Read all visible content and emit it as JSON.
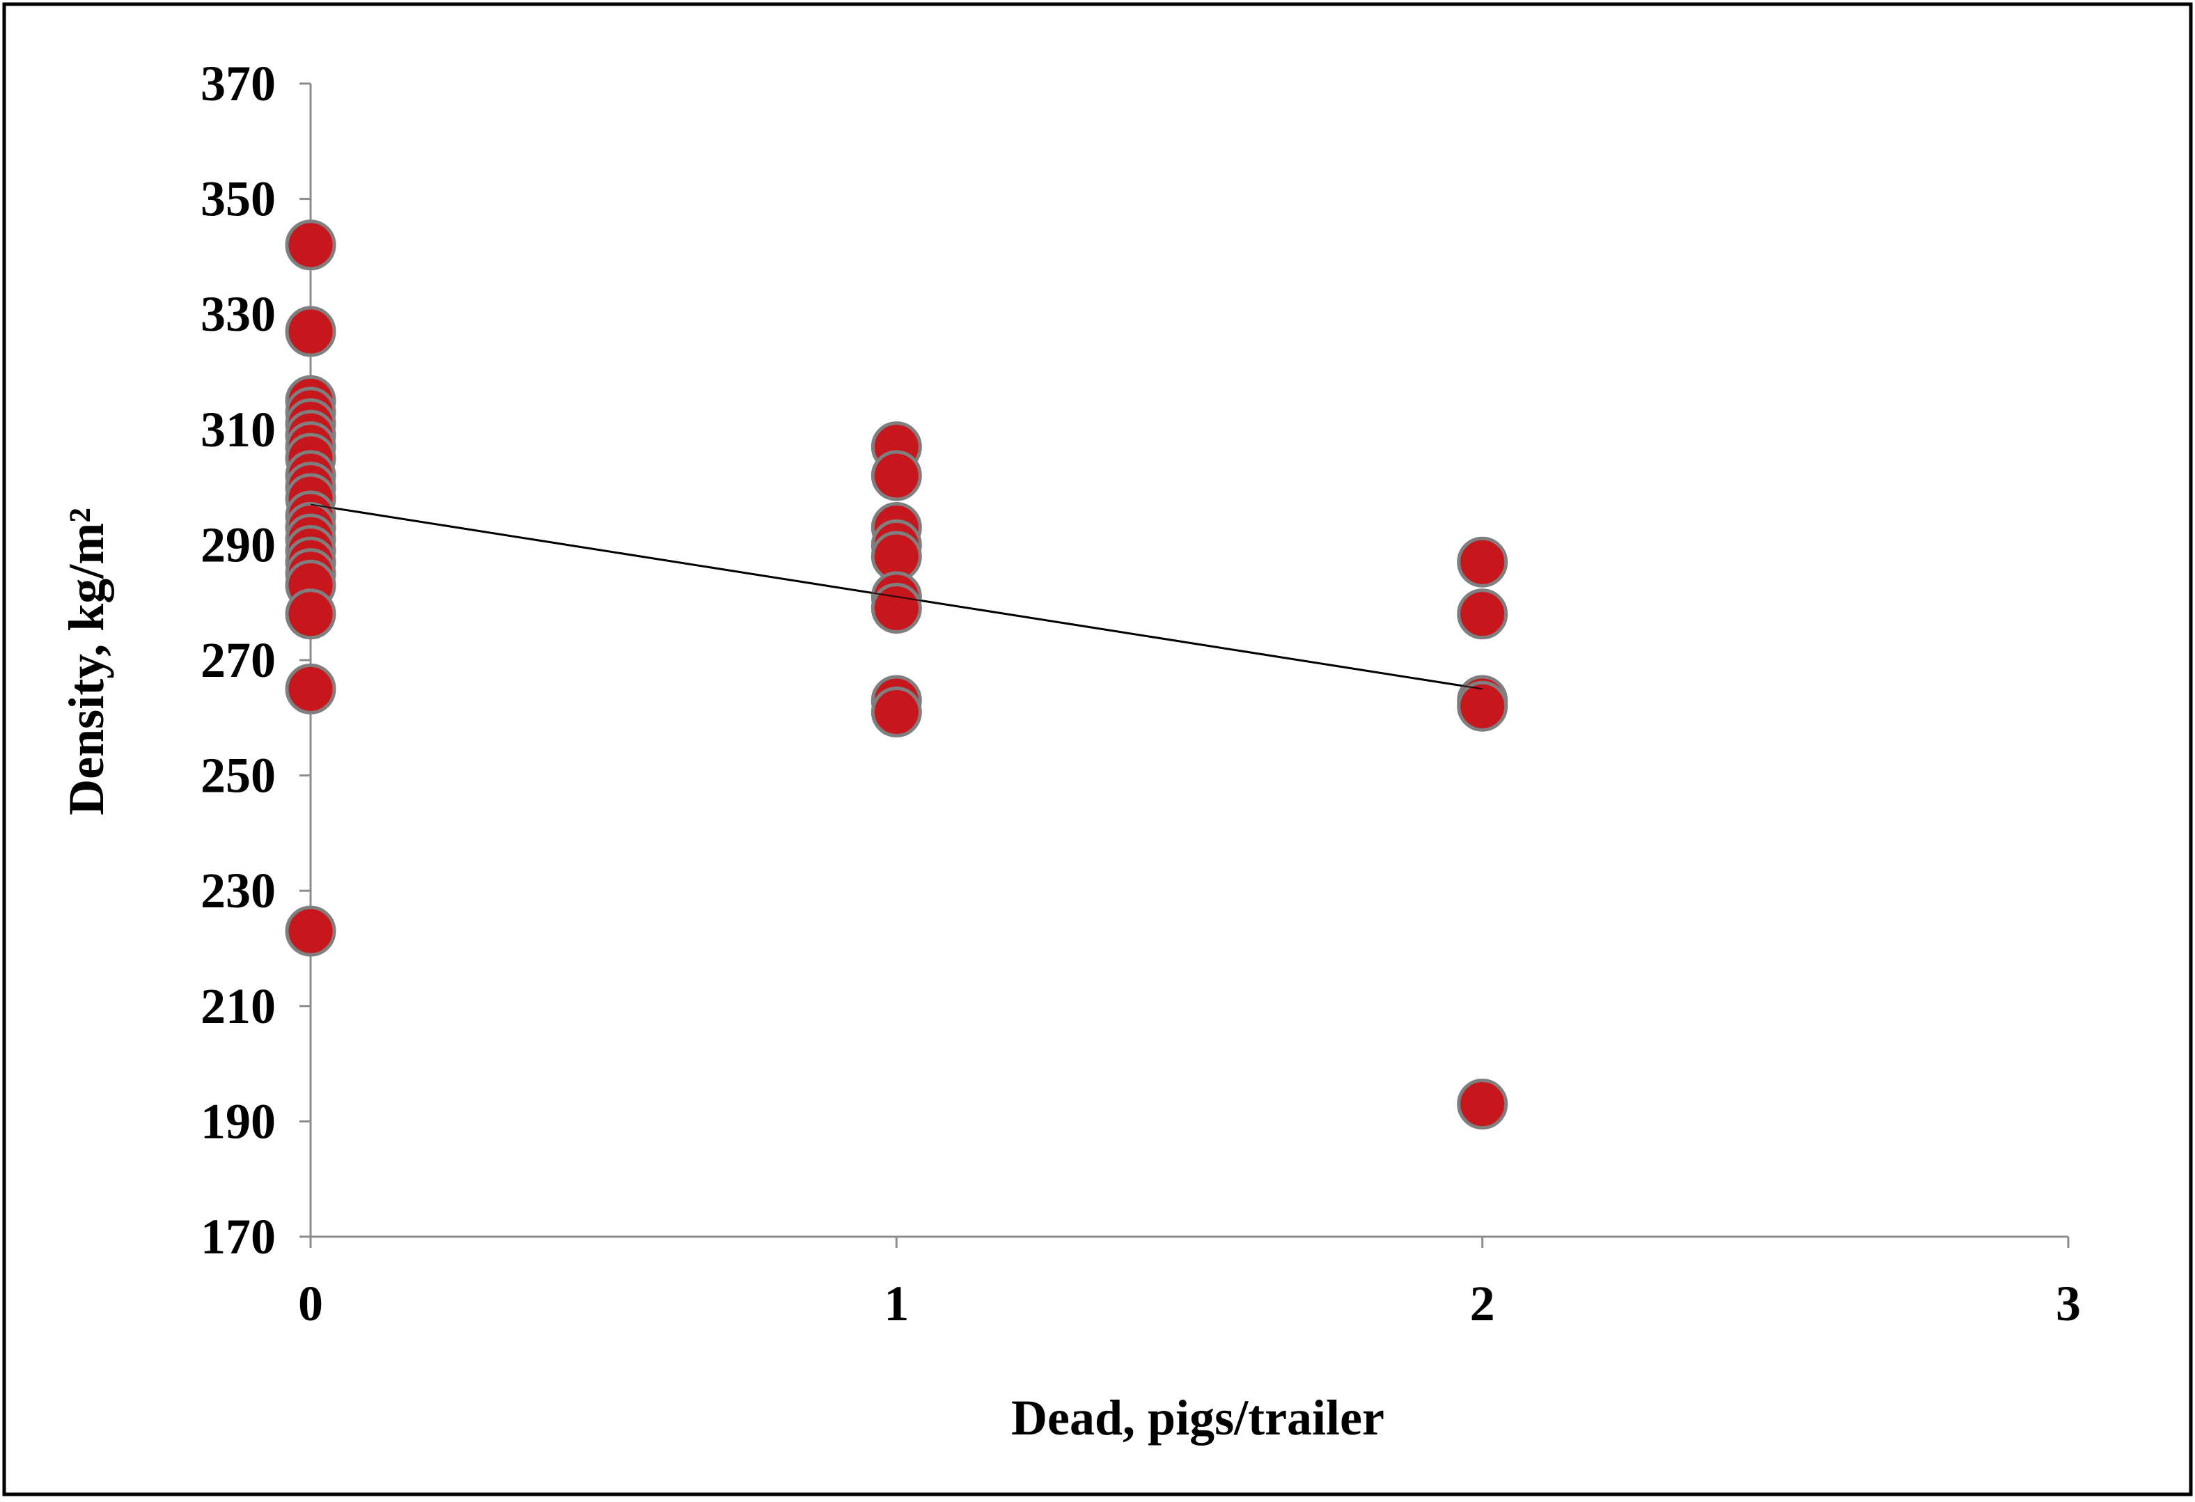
{
  "chart_data": {
    "type": "scatter",
    "x_label": "Dead, pigs/trailer",
    "y_label": "Density, kg/m²",
    "xlim": [
      0,
      3
    ],
    "xticks": [
      0,
      1,
      2,
      3
    ],
    "ylim": [
      170,
      370
    ],
    "yticks": [
      170,
      190,
      210,
      230,
      250,
      270,
      290,
      310,
      330,
      350,
      370
    ],
    "grid": false,
    "series": [
      {
        "color": "#c8161d",
        "x": [
          0,
          0,
          0,
          0,
          0,
          0,
          0,
          0,
          0,
          0,
          0,
          0,
          0,
          0,
          0,
          0,
          0,
          0,
          0,
          0,
          0,
          1,
          1,
          1,
          1,
          1,
          1,
          1,
          1,
          1,
          2,
          2,
          2,
          2,
          2
        ],
        "y": [
          342,
          327,
          315,
          313,
          311,
          309,
          307,
          305,
          302,
          300,
          298,
          295,
          293,
          291,
          289,
          287,
          285,
          283,
          278,
          265,
          223,
          307,
          302,
          293,
          290,
          288,
          281,
          279,
          263,
          261,
          287,
          278,
          263,
          262,
          193
        ]
      }
    ],
    "trendline": {
      "color": "#000000",
      "x": [
        0,
        2
      ],
      "y": [
        297,
        265
      ]
    }
  }
}
